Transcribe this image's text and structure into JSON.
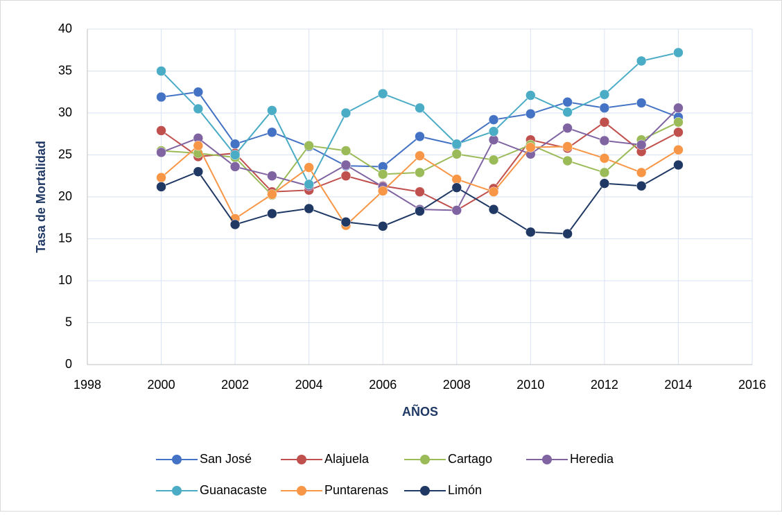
{
  "chart_data": {
    "type": "line",
    "xlabel": "AÑOS",
    "ylabel": "Tasa de Mortalidad",
    "x": [
      2000,
      2001,
      2002,
      2003,
      2004,
      2005,
      2006,
      2007,
      2008,
      2009,
      2010,
      2011,
      2012,
      2013,
      2014
    ],
    "series": [
      {
        "name": "San José",
        "color": "#4472c4",
        "values": [
          31.9,
          32.5,
          26.3,
          27.7,
          26.0,
          23.7,
          23.6,
          27.2,
          26.2,
          29.2,
          29.9,
          31.3,
          30.6,
          31.2,
          29.5
        ]
      },
      {
        "name": "Alajuela",
        "color": "#c0504d",
        "values": [
          27.9,
          24.8,
          25.2,
          20.6,
          20.8,
          22.5,
          21.3,
          20.6,
          18.4,
          21.0,
          26.8,
          25.8,
          28.9,
          25.4,
          27.7
        ]
      },
      {
        "name": "Cartago",
        "color": "#9bbb59",
        "values": [
          25.5,
          25.2,
          24.7,
          20.2,
          26.1,
          25.5,
          22.7,
          22.9,
          25.1,
          24.4,
          26.2,
          24.3,
          22.9,
          26.8,
          28.9
        ]
      },
      {
        "name": "Heredia",
        "color": "#8064a2",
        "values": [
          25.3,
          27.0,
          23.6,
          22.5,
          21.3,
          23.8,
          21.2,
          18.5,
          18.4,
          26.8,
          25.1,
          28.2,
          26.7,
          26.2,
          30.6
        ]
      },
      {
        "name": "Guanacaste",
        "color": "#4bacc6",
        "values": [
          35.0,
          30.5,
          25.0,
          30.3,
          21.5,
          30.0,
          32.3,
          30.6,
          26.3,
          27.8,
          32.1,
          30.1,
          32.2,
          36.2,
          37.2
        ]
      },
      {
        "name": "Puntarenas",
        "color": "#f79646",
        "values": [
          22.3,
          26.1,
          17.4,
          20.3,
          23.5,
          16.6,
          20.7,
          24.9,
          22.1,
          20.6,
          25.9,
          26.0,
          24.6,
          22.9,
          25.6
        ]
      },
      {
        "name": "Limón",
        "color": "#1f3864",
        "values": [
          21.2,
          23.0,
          16.7,
          18.0,
          18.6,
          17.0,
          16.5,
          18.3,
          21.1,
          18.5,
          15.8,
          15.6,
          21.6,
          21.3,
          23.8
        ]
      }
    ],
    "xlim": [
      1998,
      2016
    ],
    "xticks": [
      1998,
      2000,
      2002,
      2004,
      2006,
      2008,
      2010,
      2012,
      2014,
      2016
    ],
    "ylim": [
      0,
      40
    ],
    "yticks": [
      0,
      5,
      10,
      15,
      20,
      25,
      30,
      35,
      40
    ],
    "grid": true,
    "legend": "bottom"
  }
}
